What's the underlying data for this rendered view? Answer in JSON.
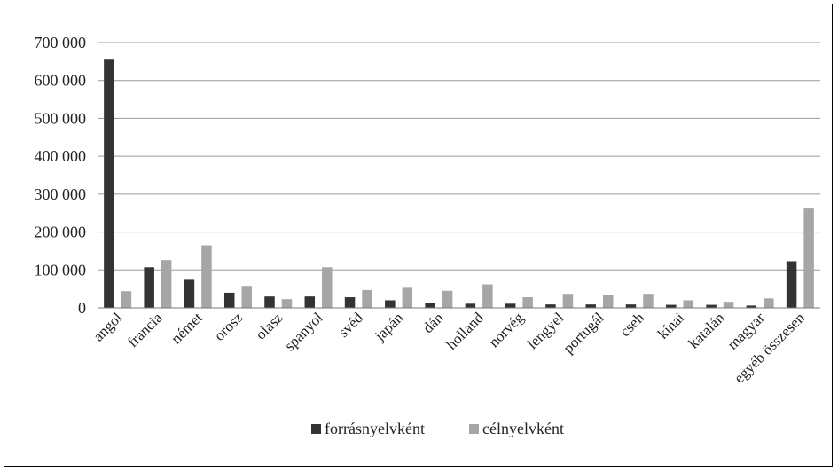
{
  "chart_data": {
    "type": "bar",
    "title": "",
    "xlabel": "",
    "ylabel": "",
    "ylim": [
      0,
      700000
    ],
    "yticks": [
      0,
      100000,
      200000,
      300000,
      400000,
      500000,
      600000,
      700000
    ],
    "ytick_labels": [
      "0",
      "100 000",
      "200 000",
      "300 000",
      "400 000",
      "500 000",
      "600 000",
      "700 000"
    ],
    "grid": true,
    "legend_position": "bottom",
    "categories": [
      "angol",
      "francia",
      "német",
      "orosz",
      "olasz",
      "spanyol",
      "svéd",
      "japán",
      "dán",
      "holland",
      "norvég",
      "lengyel",
      "portugál",
      "cseh",
      "kínai",
      "katalán",
      "magyar",
      "egyéb összesen"
    ],
    "series": [
      {
        "name": "forrásnyelvként",
        "color": "#333333",
        "values": [
          655000,
          107000,
          74000,
          40000,
          30000,
          30000,
          28000,
          20000,
          12000,
          11000,
          11000,
          9000,
          9000,
          9000,
          8000,
          8000,
          6000,
          123000
        ]
      },
      {
        "name": "célnyelvként",
        "color": "#a6a6a6",
        "values": [
          44000,
          126000,
          165000,
          58000,
          23000,
          107000,
          47000,
          53000,
          45000,
          62000,
          28000,
          37000,
          35000,
          37000,
          20000,
          16000,
          25000,
          262000
        ]
      }
    ]
  }
}
